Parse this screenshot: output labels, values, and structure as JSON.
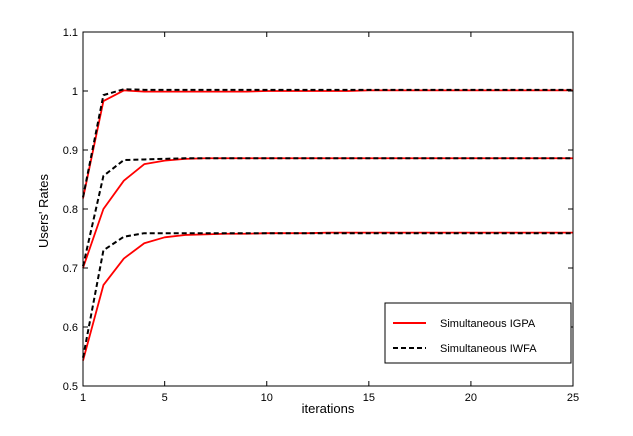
{
  "chart_data": {
    "type": "line",
    "xlabel": "iterations",
    "ylabel": "Users' Rates",
    "xlim": [
      1,
      25
    ],
    "ylim": [
      0.5,
      1.1
    ],
    "xticks": [
      1,
      5,
      10,
      15,
      20,
      25
    ],
    "yticks": [
      0.5,
      0.6,
      0.7,
      0.8,
      0.9,
      1,
      1.1
    ],
    "xtick_labels": [
      "1",
      "5",
      "10",
      "15",
      "20",
      "25"
    ],
    "ytick_labels": [
      "0.5",
      "0.6",
      "0.7",
      "0.8",
      "0.9",
      "1",
      "1.1"
    ],
    "grid": false,
    "legend_position": "bottom-right",
    "legend": [
      {
        "name": "Simultaneous IGPA",
        "color": "#ff0000",
        "style": "solid"
      },
      {
        "name": "Simultaneous IWFA",
        "color": "#000000",
        "style": "dashed"
      }
    ],
    "x": [
      1,
      2,
      3,
      4,
      5,
      6,
      7,
      8,
      9,
      10,
      11,
      12,
      13,
      14,
      15,
      16,
      17,
      18,
      19,
      20,
      21,
      22,
      23,
      24,
      25
    ],
    "series": [
      {
        "group": "Simultaneous IGPA",
        "color": "#ff0000",
        "style": "solid",
        "values": [
          0.818,
          0.983,
          1.001,
          0.999,
          0.999,
          0.999,
          0.999,
          0.999,
          0.999,
          1.0,
          1.0,
          1.0,
          1.0,
          1.0,
          1.001,
          1.001,
          1.001,
          1.001,
          1.001,
          1.001,
          1.001,
          1.001,
          1.001,
          1.001,
          1.001
        ]
      },
      {
        "group": "Simultaneous IWFA",
        "color": "#000000",
        "style": "dashed",
        "values": [
          0.82,
          0.993,
          1.003,
          1.002,
          1.002,
          1.002,
          1.002,
          1.002,
          1.002,
          1.002,
          1.002,
          1.002,
          1.002,
          1.002,
          1.002,
          1.002,
          1.002,
          1.002,
          1.002,
          1.002,
          1.002,
          1.002,
          1.002,
          1.002,
          1.002
        ]
      },
      {
        "group": "Simultaneous IGPA",
        "color": "#ff0000",
        "style": "solid",
        "values": [
          0.7,
          0.8,
          0.848,
          0.876,
          0.882,
          0.885,
          0.886,
          0.886,
          0.886,
          0.886,
          0.886,
          0.886,
          0.886,
          0.886,
          0.886,
          0.886,
          0.886,
          0.886,
          0.886,
          0.886,
          0.886,
          0.886,
          0.886,
          0.886,
          0.886
        ]
      },
      {
        "group": "Simultaneous IWFA",
        "color": "#000000",
        "style": "dashed",
        "values": [
          0.703,
          0.856,
          0.883,
          0.884,
          0.885,
          0.886,
          0.886,
          0.886,
          0.886,
          0.886,
          0.886,
          0.886,
          0.886,
          0.886,
          0.886,
          0.886,
          0.886,
          0.886,
          0.886,
          0.886,
          0.886,
          0.886,
          0.886,
          0.886,
          0.886
        ]
      },
      {
        "group": "Simultaneous IGPA",
        "color": "#ff0000",
        "style": "solid",
        "values": [
          0.543,
          0.671,
          0.716,
          0.742,
          0.752,
          0.756,
          0.757,
          0.758,
          0.758,
          0.759,
          0.759,
          0.759,
          0.76,
          0.76,
          0.76,
          0.76,
          0.76,
          0.76,
          0.76,
          0.76,
          0.76,
          0.76,
          0.76,
          0.76,
          0.76
        ]
      },
      {
        "group": "Simultaneous IWFA",
        "color": "#000000",
        "style": "dashed",
        "values": [
          0.548,
          0.73,
          0.753,
          0.759,
          0.759,
          0.759,
          0.759,
          0.759,
          0.759,
          0.759,
          0.759,
          0.759,
          0.759,
          0.759,
          0.759,
          0.759,
          0.759,
          0.759,
          0.759,
          0.759,
          0.759,
          0.759,
          0.759,
          0.759,
          0.759
        ]
      }
    ]
  }
}
